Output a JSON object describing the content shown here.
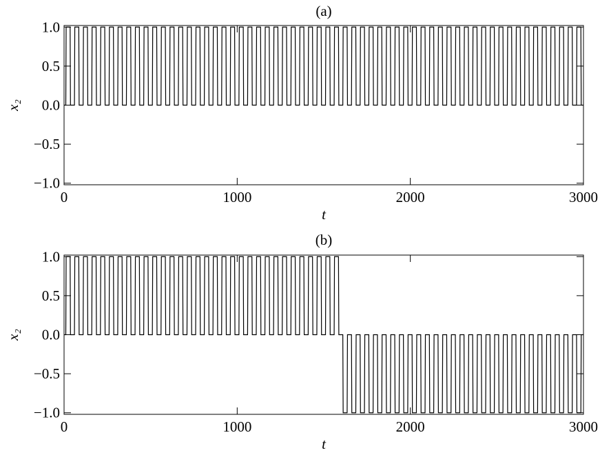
{
  "chart_data": [
    {
      "type": "line",
      "title": "(a)",
      "xlabel": "t",
      "ylabel": "x₂",
      "xlim": [
        0,
        3000
      ],
      "ylim": [
        -1.02,
        1.02
      ],
      "xticks": [
        0,
        1000,
        2000,
        3000
      ],
      "yticks": [
        {
          "value": -1,
          "label": "−1.0"
        },
        {
          "value": -0.5,
          "label": "−0.5"
        },
        {
          "value": 0,
          "label": "0.0"
        },
        {
          "value": 0.5,
          "label": "0.5"
        },
        {
          "value": 1,
          "label": "1.0"
        }
      ],
      "x": [
        0,
        10,
        12,
        35,
        37,
        60,
        62,
        85,
        87,
        110,
        112,
        135,
        137,
        160,
        162,
        185,
        187,
        210,
        212,
        235,
        237,
        260,
        262,
        285,
        287,
        310,
        312,
        335,
        337,
        360,
        362,
        385,
        387,
        410,
        412,
        435,
        437,
        460,
        462,
        485,
        487,
        510,
        512,
        535,
        537,
        560,
        562,
        585,
        587,
        610,
        612,
        635,
        637,
        660,
        662,
        685,
        687,
        710,
        712,
        735,
        737,
        760,
        762,
        785,
        787,
        810,
        812,
        835,
        837,
        860,
        862,
        885,
        887,
        910,
        912,
        935,
        937,
        960,
        962,
        985,
        987,
        1010,
        1012,
        1035,
        1037,
        1060,
        1062,
        1085,
        1087,
        1110,
        1112,
        1135,
        1137,
        1160,
        1162,
        1185,
        1187,
        1210,
        1212,
        1235,
        1237,
        1260,
        1262,
        1285,
        1287,
        1310,
        1312,
        1335,
        1337,
        1360,
        1362,
        1385,
        1387,
        1410,
        1412,
        1435,
        1437,
        1460,
        1462,
        1485,
        1487,
        1510,
        1512,
        1535,
        1537,
        1560,
        1562,
        1585,
        1587,
        1610,
        1612,
        1635,
        1637,
        1660,
        1662,
        1685,
        1687,
        1710,
        1712,
        1735,
        1737,
        1760,
        1762,
        1785,
        1787,
        1810,
        1812,
        1835,
        1837,
        1860,
        1862,
        1885,
        1887,
        1910,
        1912,
        1935,
        1937,
        1960,
        1962,
        1985,
        1987,
        2010,
        2012,
        2035,
        2037,
        2060,
        2062,
        2085,
        2087,
        2110,
        2112,
        2135,
        2137,
        2160,
        2162,
        2185,
        2187,
        2210,
        2212,
        2235,
        2237,
        2260,
        2262,
        2285,
        2287,
        2310,
        2312,
        2335,
        2337,
        2360,
        2362,
        2385,
        2387,
        2410,
        2412,
        2435,
        2437,
        2460,
        2462,
        2485,
        2487,
        2510,
        2512,
        2535,
        2537,
        2560,
        2562,
        2585,
        2587,
        2610,
        2612,
        2635,
        2637,
        2660,
        2662,
        2685,
        2687,
        2710,
        2712,
        2735,
        2737,
        2760,
        2762,
        2785,
        2787,
        2810,
        2812,
        2835,
        2837,
        2860,
        2862,
        2885,
        2887,
        2910,
        2912,
        2935,
        2937,
        2960,
        2962,
        2985,
        2987,
        3000
      ],
      "series": [
        {
          "color": "#000000",
          "values": [
            0,
            0,
            1,
            1,
            0,
            0,
            1,
            1,
            0,
            0,
            1,
            1,
            0,
            0,
            1,
            1,
            0,
            0,
            1,
            1,
            0,
            0,
            1,
            1,
            0,
            0,
            1,
            1,
            0,
            0,
            1,
            1,
            0,
            0,
            1,
            1,
            0,
            0,
            1,
            1,
            0,
            0,
            1,
            1,
            0,
            0,
            1,
            1,
            0,
            0,
            1,
            1,
            0,
            0,
            1,
            1,
            0,
            0,
            1,
            1,
            0,
            0,
            1,
            1,
            0,
            0,
            1,
            1,
            0,
            0,
            1,
            1,
            0,
            0,
            1,
            1,
            0,
            0,
            1,
            1,
            0,
            0,
            1,
            1,
            0,
            0,
            1,
            1,
            0,
            0,
            1,
            1,
            0,
            0,
            1,
            1,
            0,
            0,
            1,
            1,
            0,
            0,
            1,
            1,
            0,
            0,
            1,
            1,
            0,
            0,
            1,
            1,
            0,
            0,
            1,
            1,
            0,
            0,
            1,
            1,
            0,
            0,
            1,
            1,
            0,
            0,
            1,
            1,
            0,
            0,
            1,
            1,
            0,
            0,
            1,
            1,
            0,
            0,
            1,
            1,
            0,
            0,
            1,
            1,
            0,
            0,
            1,
            1,
            0,
            0,
            1,
            1,
            0,
            0,
            1,
            1,
            0,
            0,
            1,
            1,
            0,
            0,
            1,
            1,
            0,
            0,
            1,
            1,
            0,
            0,
            1,
            1,
            0,
            0,
            1,
            1,
            0,
            0,
            1,
            1,
            0,
            0,
            1,
            1,
            0,
            0,
            1,
            1,
            0,
            0,
            1,
            1,
            0,
            0,
            1,
            1,
            0,
            0,
            1,
            1,
            0,
            0,
            1,
            1,
            0,
            0,
            1,
            1,
            0,
            0,
            1,
            1,
            0,
            0,
            1,
            1,
            0,
            0,
            1,
            1,
            0,
            0,
            1,
            1,
            0,
            0,
            1,
            1,
            0,
            0,
            1,
            1,
            0,
            0,
            1,
            1,
            0,
            0,
            1,
            1,
            0,
            0
          ]
        }
      ]
    },
    {
      "type": "line",
      "title": "(b)",
      "xlabel": "t",
      "ylabel": "x₂",
      "xlim": [
        0,
        3000
      ],
      "ylim": [
        -1.02,
        1.02
      ],
      "xticks": [
        0,
        1000,
        2000,
        3000
      ],
      "yticks": [
        {
          "value": -1,
          "label": "−1.0"
        },
        {
          "value": -0.5,
          "label": "−0.5"
        },
        {
          "value": 0,
          "label": "0.0"
        },
        {
          "value": 0.5,
          "label": "0.5"
        },
        {
          "value": 1,
          "label": "1.0"
        }
      ],
      "x": [
        0,
        10,
        12,
        35,
        37,
        60,
        62,
        85,
        87,
        110,
        112,
        135,
        137,
        160,
        162,
        185,
        187,
        210,
        212,
        235,
        237,
        260,
        262,
        285,
        287,
        310,
        312,
        335,
        337,
        360,
        362,
        385,
        387,
        410,
        412,
        435,
        437,
        460,
        462,
        485,
        487,
        510,
        512,
        535,
        537,
        560,
        562,
        585,
        587,
        610,
        612,
        635,
        637,
        660,
        662,
        685,
        687,
        710,
        712,
        735,
        737,
        760,
        762,
        785,
        787,
        810,
        812,
        835,
        837,
        860,
        862,
        885,
        887,
        910,
        912,
        935,
        937,
        960,
        962,
        985,
        987,
        1010,
        1012,
        1035,
        1037,
        1060,
        1062,
        1085,
        1087,
        1110,
        1112,
        1135,
        1137,
        1160,
        1162,
        1185,
        1187,
        1210,
        1212,
        1235,
        1237,
        1260,
        1262,
        1285,
        1287,
        1310,
        1312,
        1335,
        1337,
        1360,
        1362,
        1385,
        1387,
        1410,
        1412,
        1435,
        1437,
        1460,
        1462,
        1485,
        1487,
        1510,
        1512,
        1535,
        1537,
        1560,
        1562,
        1585,
        1587,
        1610,
        1612,
        1635,
        1637,
        1660,
        1662,
        1685,
        1687,
        1710,
        1712,
        1735,
        1737,
        1760,
        1762,
        1785,
        1787,
        1810,
        1812,
        1835,
        1837,
        1860,
        1862,
        1885,
        1887,
        1910,
        1912,
        1935,
        1937,
        1960,
        1962,
        1985,
        1987,
        2010,
        2012,
        2035,
        2037,
        2060,
        2062,
        2085,
        2087,
        2110,
        2112,
        2135,
        2137,
        2160,
        2162,
        2185,
        2187,
        2210,
        2212,
        2235,
        2237,
        2260,
        2262,
        2285,
        2287,
        2310,
        2312,
        2335,
        2337,
        2360,
        2362,
        2385,
        2387,
        2410,
        2412,
        2435,
        2437,
        2460,
        2462,
        2485,
        2487,
        2510,
        2512,
        2535,
        2537,
        2560,
        2562,
        2585,
        2587,
        2610,
        2612,
        2635,
        2637,
        2660,
        2662,
        2685,
        2687,
        2710,
        2712,
        2735,
        2737,
        2760,
        2762,
        2785,
        2787,
        2810,
        2812,
        2835,
        2837,
        2860,
        2862,
        2885,
        2887,
        2910,
        2912,
        2935,
        2937,
        2960,
        2962,
        2985,
        2987,
        3000
      ],
      "series": [
        {
          "color": "#000000",
          "values": [
            0,
            0,
            1,
            1,
            0,
            0,
            1,
            1,
            0,
            0,
            1,
            1,
            0,
            0,
            1,
            1,
            0,
            0,
            1,
            1,
            0,
            0,
            1,
            1,
            0,
            0,
            1,
            1,
            0,
            0,
            1,
            1,
            0,
            0,
            1,
            1,
            0,
            0,
            1,
            1,
            0,
            0,
            1,
            1,
            0,
            0,
            1,
            1,
            0,
            0,
            1,
            1,
            0,
            0,
            1,
            1,
            0,
            0,
            1,
            1,
            0,
            0,
            1,
            1,
            0,
            0,
            1,
            1,
            0,
            0,
            1,
            1,
            0,
            0,
            1,
            1,
            0,
            0,
            1,
            1,
            0,
            0,
            1,
            1,
            0,
            0,
            1,
            1,
            0,
            0,
            1,
            1,
            0,
            0,
            1,
            1,
            0,
            0,
            1,
            1,
            0,
            0,
            1,
            1,
            0,
            0,
            1,
            1,
            0,
            0,
            1,
            1,
            0,
            0,
            1,
            1,
            0,
            0,
            1,
            1,
            0,
            0,
            1,
            1,
            0,
            0,
            1,
            1,
            0,
            0,
            -1,
            -1,
            0,
            0,
            -1,
            -1,
            0,
            0,
            -1,
            -1,
            0,
            0,
            -1,
            -1,
            0,
            0,
            -1,
            -1,
            0,
            0,
            -1,
            -1,
            0,
            0,
            -1,
            -1,
            0,
            0,
            -1,
            -1,
            0,
            0,
            -1,
            -1,
            0,
            0,
            -1,
            -1,
            0,
            0,
            -1,
            -1,
            0,
            0,
            -1,
            -1,
            0,
            0,
            -1,
            -1,
            0,
            0,
            -1,
            -1,
            0,
            0,
            -1,
            -1,
            0,
            0,
            -1,
            -1,
            0,
            0,
            -1,
            -1,
            0,
            0,
            -1,
            -1,
            0,
            0,
            -1,
            -1,
            0,
            0,
            -1,
            -1,
            0,
            0,
            -1,
            -1,
            0,
            0,
            -1,
            -1,
            0,
            0,
            -1,
            -1,
            0,
            0,
            -1,
            -1,
            0,
            0,
            -1,
            -1,
            0,
            0,
            -1,
            -1,
            0,
            0,
            -1,
            -1,
            0,
            0,
            -1,
            -1,
            0,
            0
          ]
        }
      ]
    }
  ]
}
